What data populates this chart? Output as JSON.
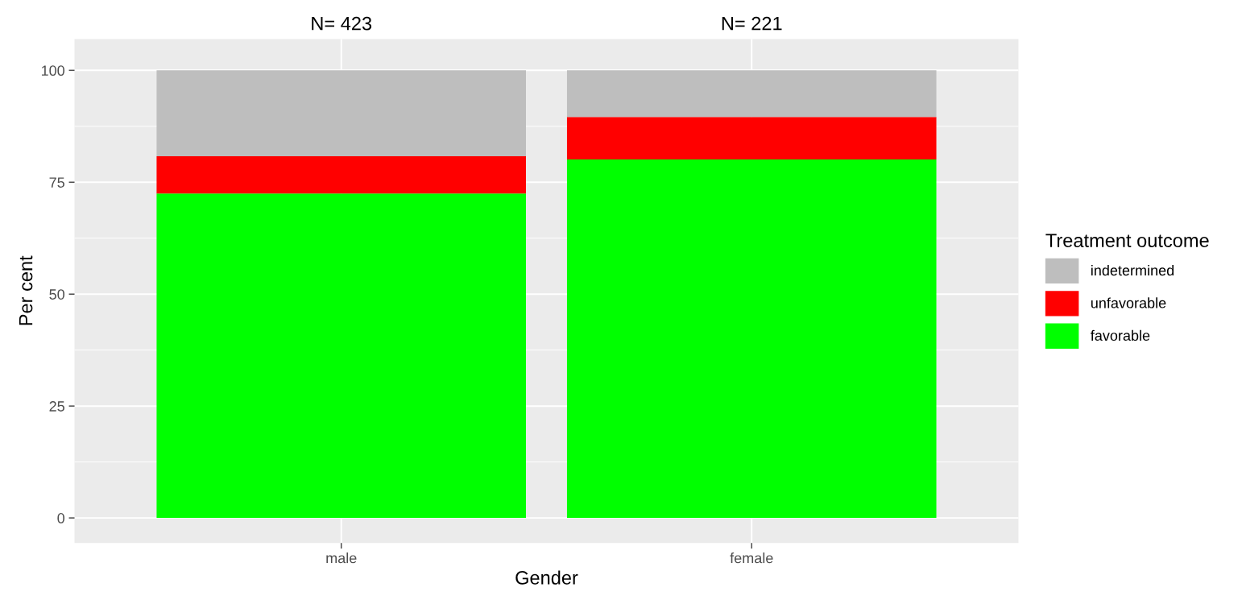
{
  "chart_data": {
    "type": "bar",
    "stacked": true,
    "xlabel": "Gender",
    "ylabel": "Per cent",
    "legend_title": "Treatment outcome",
    "legend": "right",
    "categories": [
      "male",
      "female"
    ],
    "series": [
      {
        "name": "favorable",
        "color": "#00ff00",
        "values": [
          72.5,
          80.1
        ]
      },
      {
        "name": "unfavorable",
        "color": "#ff0000",
        "values": [
          8.3,
          9.5
        ]
      },
      {
        "name": "indetermined",
        "color": "#bebebe",
        "values": [
          19.2,
          10.4
        ]
      }
    ],
    "ylim": [
      -5.6,
      107
    ],
    "yticks": [
      0,
      25,
      50,
      75,
      100
    ],
    "grid": true,
    "annotations": [
      "N= 423",
      "N= 221"
    ]
  }
}
